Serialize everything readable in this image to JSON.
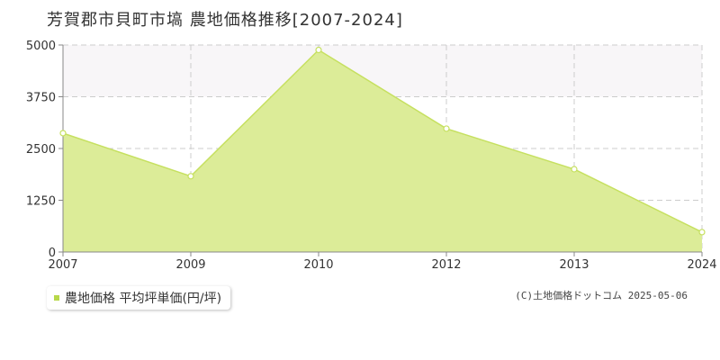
{
  "title": "芳賀郡市貝町市塙 農地価格推移[2007-2024]",
  "legend": {
    "label": "農地価格 平均坪単価(円/坪)"
  },
  "copyright": "(C)土地価格ドットコム 2025-05-06",
  "colors": {
    "fill": "#dcec98",
    "line": "#c6e060",
    "band": "#f8f6f8",
    "grid": "#cccccc",
    "axis": "#888888",
    "marker_fill": "#ffffff",
    "legend_swatch": "#b8d84a"
  },
  "chart_data": {
    "type": "area",
    "categories": [
      "2007",
      "2009",
      "2010",
      "2012",
      "2013",
      "2024"
    ],
    "series": [
      {
        "name": "農地価格 平均坪単価(円/坪)",
        "values": [
          2870,
          1830,
          4880,
          2980,
          2000,
          480
        ]
      }
    ],
    "yticks": [
      0,
      1250,
      2500,
      3750,
      5000
    ],
    "ytick_labels": [
      "0",
      "1250",
      "2500",
      "3750",
      "5000"
    ],
    "ylim": [
      0,
      5000
    ],
    "grid": true,
    "legend_position": "bottom-left"
  }
}
